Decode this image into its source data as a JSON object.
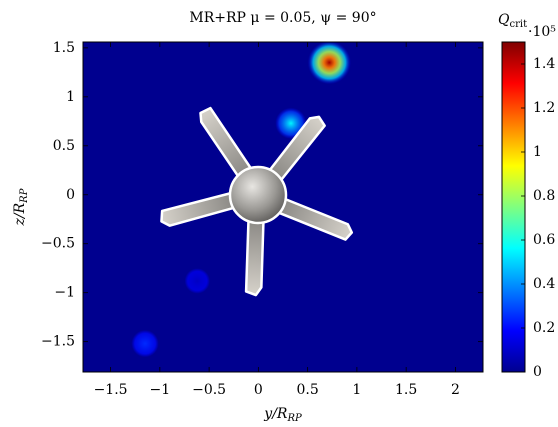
{
  "chart_data": {
    "type": "heatmap",
    "title": "MR+RP μ = 0.05, ψ = 90°",
    "xlabel": {
      "text": "y/R",
      "subscript": "RP"
    },
    "ylabel": {
      "text": "z/R",
      "subscript": "RP"
    },
    "xlim": [
      -1.78,
      2.28
    ],
    "ylim": [
      -1.81,
      1.56
    ],
    "xticks": [
      {
        "value": -1.5,
        "label": "−1.5"
      },
      {
        "value": -1,
        "label": "−1"
      },
      {
        "value": -0.5,
        "label": "−0.5"
      },
      0,
      0.5,
      1,
      1.5,
      2
    ],
    "yticks": [
      {
        "value": -1.5,
        "label": "−1.5"
      },
      {
        "value": -1,
        "label": "−1"
      },
      {
        "value": -0.5,
        "label": "−0.5"
      },
      0,
      0.5,
      1,
      1.5
    ],
    "colorbar": {
      "label": {
        "symbol": "Q",
        "subscript": "crit"
      },
      "multiplier": "·10⁵",
      "lim": [
        0,
        1.5
      ],
      "ticks": [
        0,
        0.2,
        0.4,
        0.6,
        0.8,
        1,
        1.2,
        1.4
      ]
    },
    "hotspots": {
      "y": [
        0.72,
        0.33,
        -1.15,
        -0.62
      ],
      "z": [
        1.35,
        0.73,
        -1.52,
        -0.88
      ],
      "q": [
        1.45,
        0.55,
        0.25,
        0.1
      ]
    }
  }
}
